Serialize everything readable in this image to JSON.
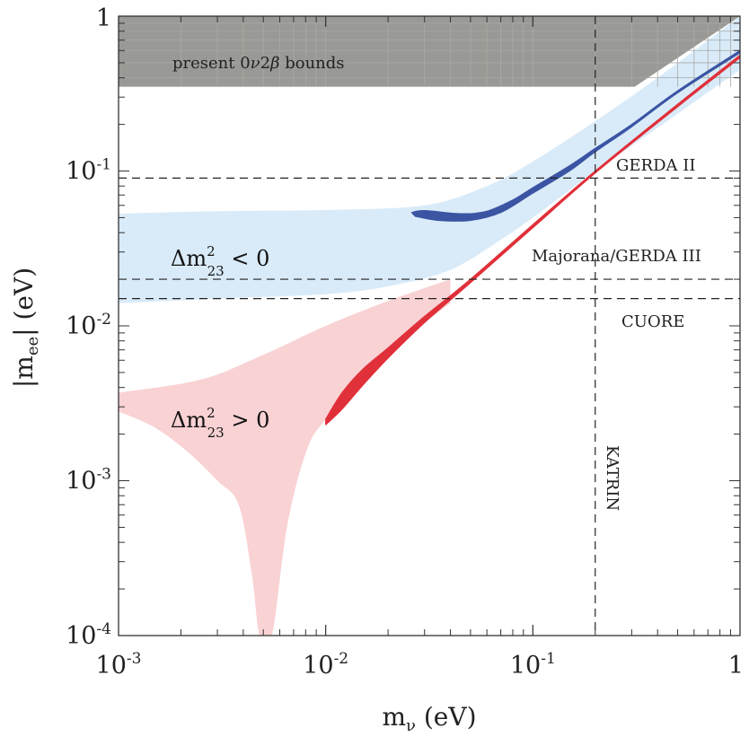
{
  "chart_data": {
    "type": "area",
    "title": "",
    "xlabel": "m",
    "xlabel_sub": "ν",
    "xlabel_unit": " (eV)",
    "ylabel": "|m",
    "ylabel_sub": "ee",
    "ylabel_unit": "| (eV)",
    "xscale": "log",
    "yscale": "log",
    "xlim": [
      0.001,
      1
    ],
    "ylim": [
      0.0001,
      1
    ],
    "grid": false,
    "x_ticks": [
      {
        "value": 0.001,
        "base": "10",
        "exp": "-3"
      },
      {
        "value": 0.01,
        "base": "10",
        "exp": "-2"
      },
      {
        "value": 0.1,
        "base": "10",
        "exp": "-1"
      },
      {
        "value": 1,
        "base": "1",
        "exp": ""
      }
    ],
    "y_ticks": [
      {
        "value": 0.0001,
        "base": "10",
        "exp": "-4"
      },
      {
        "value": 0.001,
        "base": "10",
        "exp": "-3"
      },
      {
        "value": 0.01,
        "base": "10",
        "exp": "-2"
      },
      {
        "value": 0.1,
        "base": "10",
        "exp": "-1"
      },
      {
        "value": 1,
        "base": "1",
        "exp": ""
      }
    ],
    "regions": {
      "excluded": {
        "label_text": "present 0",
        "label_nu": "ν",
        "label_two": "2",
        "label_beta": "β",
        "label_rest": " bounds",
        "color": "#999995",
        "polygon": [
          [
            0.001,
            0.35
          ],
          [
            0.31,
            0.35
          ],
          [
            1,
            1
          ],
          [
            0.001,
            1
          ]
        ]
      },
      "inverted": {
        "label_delta": "Δm",
        "label_sup": "2",
        "label_sub": "23",
        "label_rel": " < 0",
        "color": "#d9ebf9",
        "upper": [
          [
            0.001,
            0.053
          ],
          [
            0.003,
            0.055
          ],
          [
            0.01,
            0.056
          ],
          [
            0.03,
            0.06
          ],
          [
            0.06,
            0.08
          ],
          [
            0.1,
            0.115
          ],
          [
            0.2,
            0.21
          ],
          [
            0.4,
            0.4
          ],
          [
            1,
            1
          ]
        ],
        "lower": [
          [
            0.001,
            0.014
          ],
          [
            0.003,
            0.015
          ],
          [
            0.01,
            0.016
          ],
          [
            0.02,
            0.018
          ],
          [
            0.04,
            0.023
          ],
          [
            0.07,
            0.036
          ],
          [
            0.1,
            0.05
          ],
          [
            0.2,
            0.1
          ],
          [
            0.4,
            0.19
          ],
          [
            1,
            0.45
          ]
        ]
      },
      "normal": {
        "label_delta": "Δm",
        "label_sup": "2",
        "label_sub": "23",
        "label_rel": " > 0",
        "color": "#f9d2d4",
        "upper": [
          [
            0.001,
            0.0037
          ],
          [
            0.0025,
            0.0045
          ],
          [
            0.005,
            0.0065
          ],
          [
            0.01,
            0.01
          ],
          [
            0.02,
            0.0145
          ],
          [
            0.04,
            0.02
          ]
        ],
        "lower": [
          [
            0.001,
            0.0028
          ],
          [
            0.0015,
            0.0022
          ],
          [
            0.0022,
            0.0015
          ],
          [
            0.003,
            0.001
          ],
          [
            0.0038,
            0.0007
          ],
          [
            0.0044,
            0.00025
          ],
          [
            0.0048,
            0.0001
          ],
          [
            0.0055,
            0.0001
          ],
          [
            0.0065,
            0.0005
          ],
          [
            0.008,
            0.0015
          ],
          [
            0.01,
            0.0025
          ],
          [
            0.02,
            0.007
          ],
          [
            0.03,
            0.0105
          ],
          [
            0.04,
            0.014
          ]
        ]
      }
    },
    "series": [
      {
        "name": "",
        "color": "#3b55a3",
        "type": "band",
        "upper": [
          [
            0.026,
            0.054
          ],
          [
            0.03,
            0.0555
          ],
          [
            0.045,
            0.053
          ],
          [
            0.06,
            0.055
          ],
          [
            0.08,
            0.065
          ],
          [
            0.1,
            0.078
          ],
          [
            0.15,
            0.108
          ],
          [
            0.2,
            0.14
          ],
          [
            0.3,
            0.2
          ],
          [
            0.5,
            0.33
          ],
          [
            1,
            0.6
          ]
        ],
        "lower": [
          [
            0.027,
            0.051
          ],
          [
            0.035,
            0.048
          ],
          [
            0.05,
            0.048
          ],
          [
            0.07,
            0.054
          ],
          [
            0.1,
            0.072
          ],
          [
            0.15,
            0.1
          ],
          [
            0.2,
            0.133
          ],
          [
            0.3,
            0.193
          ],
          [
            0.5,
            0.32
          ],
          [
            1,
            0.58
          ]
        ]
      },
      {
        "name": "",
        "color": "#e0303a",
        "type": "band",
        "upper": [
          [
            0.01,
            0.0025
          ],
          [
            0.012,
            0.0037
          ],
          [
            0.015,
            0.0052
          ],
          [
            0.02,
            0.0072
          ],
          [
            0.03,
            0.0115
          ],
          [
            0.05,
            0.02
          ],
          [
            0.1,
            0.045
          ],
          [
            0.2,
            0.1
          ],
          [
            0.5,
            0.27
          ],
          [
            1,
            0.56
          ]
        ],
        "lower": [
          [
            0.01,
            0.0023
          ],
          [
            0.012,
            0.0029
          ],
          [
            0.015,
            0.0041
          ],
          [
            0.02,
            0.0062
          ],
          [
            0.03,
            0.0105
          ],
          [
            0.05,
            0.019
          ],
          [
            0.1,
            0.043
          ],
          [
            0.2,
            0.097
          ],
          [
            0.5,
            0.26
          ],
          [
            1,
            0.54
          ]
        ]
      }
    ],
    "reference_lines": [
      {
        "axis": "y",
        "value": 0.09,
        "label": "GERDA II"
      },
      {
        "axis": "y",
        "value": 0.02,
        "label": "Majorana/GERDA III"
      },
      {
        "axis": "y",
        "value": 0.015,
        "label": "CUORE"
      },
      {
        "axis": "x",
        "value": 0.2,
        "label": "KATRIN"
      }
    ]
  }
}
